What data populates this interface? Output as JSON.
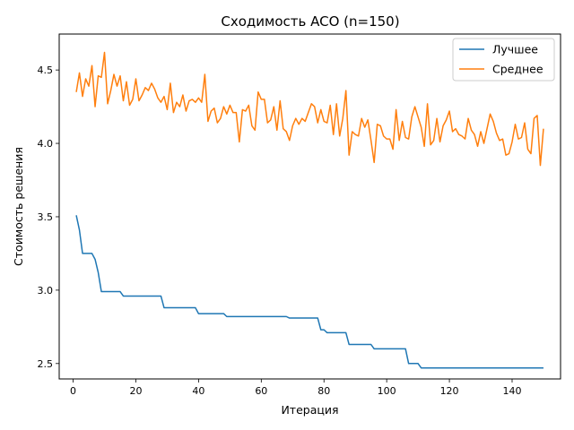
{
  "chart_data": {
    "type": "line",
    "title": "Сходимость ACO (n=150)",
    "xlabel": "Итерация",
    "ylabel": "Стоимость решения",
    "xlim": [
      -4.45,
      155.45
    ],
    "ylim": [
      2.395,
      4.745
    ],
    "xticks": [
      0,
      20,
      40,
      60,
      80,
      100,
      120,
      140
    ],
    "yticks": [
      2.5,
      3.0,
      3.5,
      4.0,
      4.5
    ],
    "ytick_labels": [
      "2.5",
      "3.0",
      "3.5",
      "4.0",
      "4.5"
    ],
    "grid": false,
    "legend": "top-right",
    "series": [
      {
        "name": "Лучшее",
        "color": "#1f77b4",
        "step_points": [
          [
            1,
            3.51
          ],
          [
            2,
            3.41
          ],
          [
            3,
            3.25
          ],
          [
            6,
            3.25
          ],
          [
            7,
            3.21
          ],
          [
            8,
            3.12
          ],
          [
            9,
            2.99
          ],
          [
            15,
            2.99
          ],
          [
            16,
            2.96
          ],
          [
            28,
            2.96
          ],
          [
            29,
            2.88
          ],
          [
            39,
            2.88
          ],
          [
            40,
            2.84
          ],
          [
            48,
            2.84
          ],
          [
            49,
            2.82
          ],
          [
            68,
            2.82
          ],
          [
            69,
            2.81
          ],
          [
            78,
            2.81
          ],
          [
            79,
            2.73
          ],
          [
            80,
            2.73
          ],
          [
            81,
            2.71
          ],
          [
            87,
            2.71
          ],
          [
            88,
            2.63
          ],
          [
            95,
            2.63
          ],
          [
            96,
            2.6
          ],
          [
            106,
            2.6
          ],
          [
            107,
            2.5
          ],
          [
            110,
            2.5
          ],
          [
            111,
            2.47
          ],
          [
            150,
            2.47
          ]
        ]
      },
      {
        "name": "Среднее",
        "color": "#ff7f0e",
        "values": [
          4.35,
          4.48,
          4.32,
          4.44,
          4.39,
          4.53,
          4.25,
          4.46,
          4.45,
          4.62,
          4.27,
          4.36,
          4.47,
          4.39,
          4.46,
          4.29,
          4.42,
          4.26,
          4.3,
          4.44,
          4.29,
          4.33,
          4.38,
          4.36,
          4.41,
          4.37,
          4.31,
          4.28,
          4.32,
          4.23,
          4.41,
          4.21,
          4.28,
          4.25,
          4.33,
          4.22,
          4.29,
          4.3,
          4.28,
          4.31,
          4.28,
          4.47,
          4.15,
          4.22,
          4.24,
          4.14,
          4.17,
          4.25,
          4.2,
          4.26,
          4.21,
          4.21,
          4.01,
          4.23,
          4.22,
          4.26,
          4.12,
          4.09,
          4.35,
          4.3,
          4.3,
          4.14,
          4.16,
          4.25,
          4.09,
          4.29,
          4.1,
          4.08,
          4.02,
          4.12,
          4.17,
          4.13,
          4.17,
          4.15,
          4.21,
          4.27,
          4.25,
          4.14,
          4.23,
          4.15,
          4.14,
          4.26,
          4.06,
          4.27,
          4.05,
          4.17,
          4.36,
          3.92,
          4.08,
          4.06,
          4.05,
          4.17,
          4.11,
          4.16,
          4.02,
          3.87,
          4.13,
          4.12,
          4.05,
          4.03,
          4.03,
          3.96,
          4.23,
          4.02,
          4.15,
          4.04,
          4.03,
          4.18,
          4.25,
          4.18,
          4.11,
          3.98,
          4.27,
          3.99,
          4.02,
          4.17,
          4.01,
          4.12,
          4.16,
          4.22,
          4.08,
          4.1,
          4.06,
          4.05,
          4.03,
          4.17,
          4.09,
          4.06,
          3.98,
          4.08,
          4.0,
          4.1,
          4.2,
          4.15,
          4.07,
          4.02,
          4.03,
          3.92,
          3.93,
          4.01,
          4.13,
          4.03,
          4.04,
          4.14,
          3.96,
          3.93,
          4.17,
          4.19,
          3.85,
          4.1
        ]
      }
    ]
  }
}
